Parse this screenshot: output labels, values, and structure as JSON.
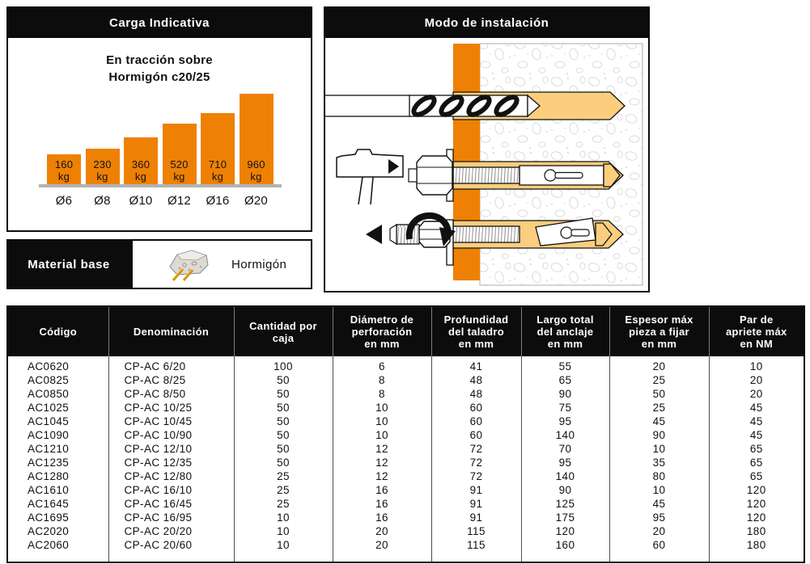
{
  "colors": {
    "orange": "#EE8103",
    "black": "#0C0C0C",
    "tan": "#FBCE7E",
    "baseline_gray": "#B3B3B3"
  },
  "load_panel": {
    "title": "Carga Indicativa",
    "subtitle": "En tracción sobre\nHormigón c20/25"
  },
  "chart_data": {
    "type": "bar",
    "title": "En tracción sobre Hormigón c20/25",
    "categories": [
      "Ø6",
      "Ø8",
      "Ø10",
      "Ø12",
      "Ø16",
      "Ø20"
    ],
    "values": [
      160,
      230,
      360,
      520,
      710,
      960
    ],
    "unit": "kg",
    "bar_color": "#EE8103",
    "xlabel": "",
    "ylabel": "",
    "grid": false,
    "legend": false
  },
  "material_panel": {
    "label": "Material base",
    "value": "Hormigón",
    "icon": "concrete-icon"
  },
  "install_panel": {
    "title": "Modo de instalación",
    "steps": [
      "drill",
      "hammer",
      "torque"
    ]
  },
  "table": {
    "headers": [
      "Código",
      "Denominación",
      "Cantidad por\ncaja",
      "Diámetro de\nperforación\nen mm",
      "Profundidad\ndel taladro\nen mm",
      "Largo total\ndel anclaje\nen mm",
      "Espesor máx\npieza a fijar\nen mm",
      "Par de\napriete máx\nen NM"
    ],
    "rows": [
      [
        "AC0620",
        "CP-AC 6/20",
        "100",
        "6",
        "41",
        "55",
        "20",
        "10"
      ],
      [
        "AC0825",
        "CP-AC 8/25",
        "50",
        "8",
        "48",
        "65",
        "25",
        "20"
      ],
      [
        "AC0850",
        "CP-AC 8/50",
        "50",
        "8",
        "48",
        "90",
        "50",
        "20"
      ],
      [
        "AC1025",
        "CP-AC 10/25",
        "50",
        "10",
        "60",
        "75",
        "25",
        "45"
      ],
      [
        "AC1045",
        "CP-AC 10/45",
        "50",
        "10",
        "60",
        "95",
        "45",
        "45"
      ],
      [
        "AC1090",
        "CP-AC 10/90",
        "50",
        "10",
        "60",
        "140",
        "90",
        "45"
      ],
      [
        "AC1210",
        "CP-AC 12/10",
        "50",
        "12",
        "72",
        "70",
        "10",
        "65"
      ],
      [
        "AC1235",
        "CP-AC 12/35",
        "50",
        "12",
        "72",
        "95",
        "35",
        "65"
      ],
      [
        "AC1280",
        "CP-AC 12/80",
        "25",
        "12",
        "72",
        "140",
        "80",
        "65"
      ],
      [
        "AC1610",
        "CP-AC 16/10",
        "25",
        "16",
        "91",
        "90",
        "10",
        "120"
      ],
      [
        "AC1645",
        "CP-AC 16/45",
        "25",
        "16",
        "91",
        "125",
        "45",
        "120"
      ],
      [
        "AC1695",
        "CP-AC 16/95",
        "10",
        "16",
        "91",
        "175",
        "95",
        "120"
      ],
      [
        "AC2020",
        "CP-AC 20/20",
        "10",
        "20",
        "115",
        "120",
        "20",
        "180"
      ],
      [
        "AC2060",
        "CP-AC 20/60",
        "10",
        "20",
        "115",
        "160",
        "60",
        "180"
      ]
    ]
  }
}
